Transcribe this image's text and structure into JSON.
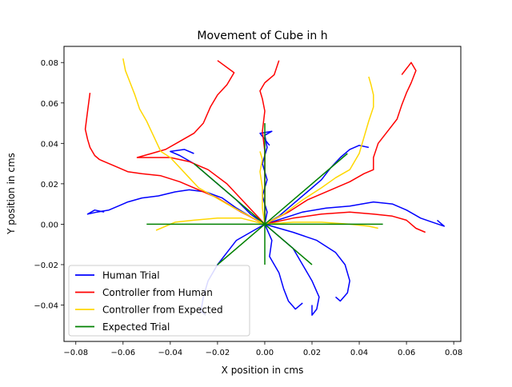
{
  "chart_data": {
    "type": "line",
    "title": "Movement of Cube in h",
    "xlabel": "X position in cms",
    "ylabel": "Y position in cms",
    "xlim": [
      -0.085,
      0.083
    ],
    "ylim": [
      -0.058,
      0.088
    ],
    "xticks": [
      -0.08,
      -0.06,
      -0.04,
      -0.02,
      0.0,
      0.02,
      0.04,
      0.06,
      0.08
    ],
    "xtick_labels": [
      "−0.08",
      "−0.06",
      "−0.04",
      "−0.02",
      "0.00",
      "0.02",
      "0.04",
      "0.06",
      "0.08"
    ],
    "yticks": [
      -0.04,
      -0.02,
      0.0,
      0.02,
      0.04,
      0.06,
      0.08
    ],
    "ytick_labels": [
      "−0.04",
      "−0.02",
      "0.00",
      "0.02",
      "0.04",
      "0.06",
      "0.08"
    ],
    "grid": false,
    "legend_position": "lower-left",
    "series": [
      {
        "name": "Human Trial",
        "color": "#0000ff",
        "paths": [
          [
            [
              0.0,
              0.0
            ],
            [
              -0.005,
              0.003
            ],
            [
              -0.012,
              0.008
            ],
            [
              -0.018,
              0.013
            ],
            [
              -0.025,
              0.016
            ],
            [
              -0.032,
              0.017
            ],
            [
              -0.038,
              0.016
            ],
            [
              -0.045,
              0.014
            ],
            [
              -0.052,
              0.013
            ],
            [
              -0.058,
              0.011
            ],
            [
              -0.062,
              0.009
            ],
            [
              -0.066,
              0.007
            ],
            [
              -0.071,
              0.006
            ],
            [
              -0.075,
              0.005
            ],
            [
              -0.072,
              0.007
            ],
            [
              -0.068,
              0.006
            ]
          ],
          [
            [
              0.0,
              0.0
            ],
            [
              -0.006,
              0.005
            ],
            [
              -0.012,
              0.012
            ],
            [
              -0.018,
              0.018
            ],
            [
              -0.024,
              0.024
            ],
            [
              -0.03,
              0.03
            ],
            [
              -0.036,
              0.034
            ],
            [
              -0.04,
              0.036
            ],
            [
              -0.034,
              0.037
            ],
            [
              -0.03,
              0.035
            ]
          ],
          [
            [
              0.0,
              0.0
            ],
            [
              0.001,
              0.006
            ],
            [
              -0.001,
              0.014
            ],
            [
              0.001,
              0.022
            ],
            [
              -0.001,
              0.03
            ],
            [
              0.001,
              0.038
            ],
            [
              0.0,
              0.044
            ],
            [
              0.003,
              0.046
            ],
            [
              -0.002,
              0.045
            ],
            [
              0.002,
              0.039
            ]
          ],
          [
            [
              0.0,
              0.0
            ],
            [
              0.006,
              0.004
            ],
            [
              0.012,
              0.01
            ],
            [
              0.018,
              0.016
            ],
            [
              0.024,
              0.022
            ],
            [
              0.028,
              0.028
            ],
            [
              0.032,
              0.033
            ],
            [
              0.036,
              0.037
            ],
            [
              0.04,
              0.039
            ],
            [
              0.044,
              0.038
            ]
          ],
          [
            [
              0.0,
              0.0
            ],
            [
              0.008,
              0.003
            ],
            [
              0.016,
              0.006
            ],
            [
              0.026,
              0.008
            ],
            [
              0.036,
              0.009
            ],
            [
              0.046,
              0.011
            ],
            [
              0.054,
              0.01
            ],
            [
              0.06,
              0.007
            ],
            [
              0.066,
              0.003
            ],
            [
              0.071,
              0.001
            ],
            [
              0.076,
              -0.001
            ],
            [
              0.073,
              0.002
            ]
          ],
          [
            [
              0.0,
              0.0
            ],
            [
              0.003,
              -0.008
            ],
            [
              0.002,
              -0.016
            ],
            [
              0.006,
              -0.024
            ],
            [
              0.008,
              -0.032
            ],
            [
              0.01,
              -0.038
            ],
            [
              0.013,
              -0.042
            ],
            [
              0.016,
              -0.039
            ]
          ],
          [
            [
              0.0,
              0.0
            ],
            [
              0.006,
              -0.006
            ],
            [
              0.012,
              -0.012
            ],
            [
              0.016,
              -0.02
            ],
            [
              0.02,
              -0.028
            ],
            [
              0.023,
              -0.036
            ],
            [
              0.022,
              -0.042
            ],
            [
              0.02,
              -0.045
            ],
            [
              0.02,
              -0.04
            ]
          ],
          [
            [
              0.0,
              0.0
            ],
            [
              0.012,
              -0.004
            ],
            [
              0.022,
              -0.008
            ],
            [
              0.03,
              -0.014
            ],
            [
              0.034,
              -0.02
            ],
            [
              0.036,
              -0.028
            ],
            [
              0.035,
              -0.034
            ],
            [
              0.032,
              -0.038
            ],
            [
              0.03,
              -0.036
            ]
          ],
          [
            [
              0.0,
              0.0
            ],
            [
              -0.006,
              -0.004
            ],
            [
              -0.012,
              -0.008
            ],
            [
              -0.016,
              -0.014
            ],
            [
              -0.02,
              -0.02
            ],
            [
              -0.024,
              -0.028
            ],
            [
              -0.026,
              -0.036
            ],
            [
              -0.027,
              -0.043
            ],
            [
              -0.025,
              -0.045
            ]
          ]
        ]
      },
      {
        "name": "Controller from Human",
        "color": "#ff0000",
        "paths": [
          [
            [
              0.0,
              0.0
            ],
            [
              -0.01,
              0.006
            ],
            [
              -0.02,
              0.013
            ],
            [
              -0.028,
              0.017
            ],
            [
              -0.036,
              0.021
            ],
            [
              -0.044,
              0.024
            ],
            [
              -0.052,
              0.025
            ],
            [
              -0.058,
              0.026
            ],
            [
              -0.064,
              0.029
            ],
            [
              -0.068,
              0.031
            ],
            [
              -0.07,
              0.032
            ],
            [
              -0.072,
              0.034
            ],
            [
              -0.074,
              0.038
            ],
            [
              -0.075,
              0.042
            ],
            [
              -0.076,
              0.047
            ],
            [
              -0.075,
              0.056
            ],
            [
              -0.074,
              0.065
            ]
          ],
          [
            [
              0.0,
              0.0
            ],
            [
              -0.008,
              0.01
            ],
            [
              -0.016,
              0.02
            ],
            [
              -0.024,
              0.027
            ],
            [
              -0.032,
              0.031
            ],
            [
              -0.04,
              0.033
            ],
            [
              -0.048,
              0.033
            ],
            [
              -0.054,
              0.033
            ],
            [
              -0.048,
              0.035
            ],
            [
              -0.042,
              0.037
            ],
            [
              -0.036,
              0.041
            ],
            [
              -0.03,
              0.045
            ],
            [
              -0.026,
              0.05
            ],
            [
              -0.023,
              0.058
            ],
            [
              -0.02,
              0.064
            ],
            [
              -0.016,
              0.069
            ],
            [
              -0.013,
              0.075
            ],
            [
              -0.02,
              0.081
            ]
          ],
          [
            [
              0.0,
              0.0
            ],
            [
              0.0,
              0.008
            ],
            [
              0.0,
              0.016
            ],
            [
              0.0,
              0.026
            ],
            [
              0.0,
              0.036
            ],
            [
              -0.001,
              0.046
            ],
            [
              0.0,
              0.056
            ],
            [
              -0.001,
              0.062
            ],
            [
              -0.002,
              0.066
            ],
            [
              0.0,
              0.07
            ],
            [
              0.004,
              0.074
            ],
            [
              0.006,
              0.081
            ]
          ],
          [
            [
              0.0,
              0.0
            ],
            [
              0.01,
              0.006
            ],
            [
              0.018,
              0.012
            ],
            [
              0.028,
              0.017
            ],
            [
              0.036,
              0.021
            ],
            [
              0.042,
              0.025
            ],
            [
              0.046,
              0.027
            ],
            [
              0.046,
              0.033
            ],
            [
              0.048,
              0.04
            ],
            [
              0.052,
              0.046
            ],
            [
              0.056,
              0.052
            ],
            [
              0.058,
              0.059
            ],
            [
              0.06,
              0.065
            ],
            [
              0.062,
              0.07
            ],
            [
              0.064,
              0.076
            ],
            [
              0.062,
              0.08
            ],
            [
              0.058,
              0.074
            ]
          ],
          [
            [
              0.0,
              0.0
            ],
            [
              0.012,
              0.003
            ],
            [
              0.024,
              0.005
            ],
            [
              0.036,
              0.006
            ],
            [
              0.046,
              0.005
            ],
            [
              0.054,
              0.004
            ],
            [
              0.06,
              0.002
            ],
            [
              0.064,
              -0.002
            ],
            [
              0.068,
              -0.004
            ]
          ]
        ]
      },
      {
        "name": "Controller from Expected",
        "color": "#ffd700",
        "paths": [
          [
            [
              0.0,
              0.0
            ],
            [
              -0.008,
              0.005
            ],
            [
              -0.016,
              0.01
            ],
            [
              -0.022,
              0.014
            ],
            [
              -0.028,
              0.018
            ],
            [
              -0.032,
              0.023
            ],
            [
              -0.036,
              0.028
            ],
            [
              -0.04,
              0.033
            ],
            [
              -0.044,
              0.036
            ],
            [
              -0.046,
              0.041
            ],
            [
              -0.048,
              0.046
            ],
            [
              -0.05,
              0.051
            ],
            [
              -0.053,
              0.057
            ],
            [
              -0.055,
              0.064
            ],
            [
              -0.057,
              0.07
            ],
            [
              -0.059,
              0.076
            ],
            [
              -0.06,
              0.082
            ]
          ],
          [
            [
              0.0,
              0.0
            ],
            [
              -0.01,
              0.003
            ],
            [
              -0.02,
              0.003
            ],
            [
              -0.03,
              0.002
            ],
            [
              -0.038,
              0.001
            ],
            [
              -0.046,
              -0.003
            ]
          ],
          [
            [
              0.0,
              0.0
            ],
            [
              -0.001,
              0.008
            ],
            [
              -0.001,
              0.018
            ],
            [
              -0.002,
              0.026
            ],
            [
              -0.001,
              0.032
            ],
            [
              -0.002,
              0.036
            ]
          ],
          [
            [
              0.0,
              0.0
            ],
            [
              0.008,
              0.005
            ],
            [
              0.016,
              0.012
            ],
            [
              0.024,
              0.018
            ],
            [
              0.03,
              0.023
            ],
            [
              0.036,
              0.027
            ],
            [
              0.04,
              0.035
            ],
            [
              0.042,
              0.043
            ],
            [
              0.044,
              0.051
            ],
            [
              0.046,
              0.058
            ],
            [
              0.046,
              0.064
            ],
            [
              0.045,
              0.069
            ],
            [
              0.044,
              0.073
            ]
          ],
          [
            [
              0.0,
              0.0
            ],
            [
              0.012,
              0.001
            ],
            [
              0.024,
              0.001
            ],
            [
              0.036,
              0.0
            ],
            [
              0.044,
              -0.001
            ],
            [
              0.048,
              -0.002
            ]
          ]
        ]
      },
      {
        "name": "Expected Trial",
        "color": "#008000",
        "paths": [
          [
            [
              0.0,
              0.0
            ],
            [
              -0.05,
              0.0
            ]
          ],
          [
            [
              0.0,
              0.0
            ],
            [
              -0.03,
              0.03
            ]
          ],
          [
            [
              0.0,
              0.0
            ],
            [
              0.0,
              0.05
            ]
          ],
          [
            [
              0.0,
              0.0
            ],
            [
              0.035,
              0.035
            ]
          ],
          [
            [
              0.0,
              0.0
            ],
            [
              0.05,
              0.0
            ]
          ],
          [
            [
              0.0,
              0.0
            ],
            [
              0.0,
              -0.02
            ]
          ],
          [
            [
              0.0,
              0.0
            ],
            [
              0.02,
              -0.02
            ]
          ],
          [
            [
              0.0,
              0.0
            ],
            [
              -0.02,
              -0.02
            ]
          ]
        ]
      }
    ]
  }
}
